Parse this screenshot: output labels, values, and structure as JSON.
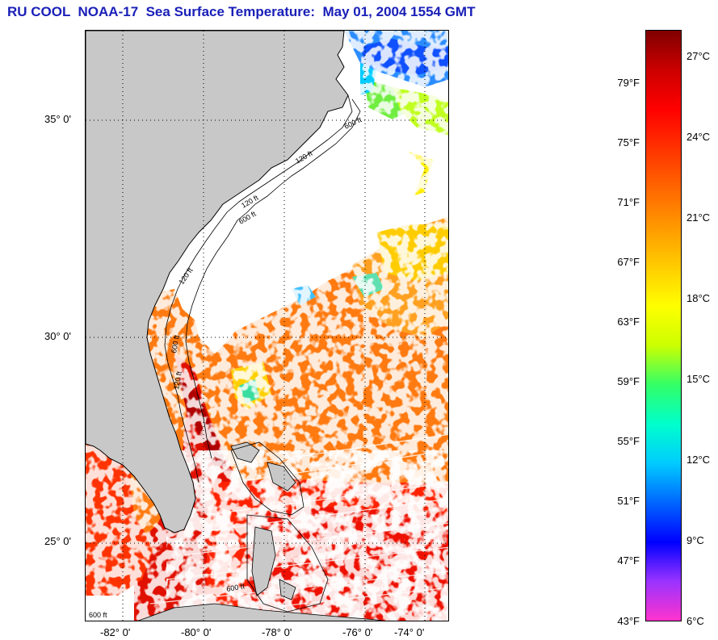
{
  "title": "RU COOL  NOAA-17  Sea Surface Temperature:  May 01, 2004 1554 GMT",
  "map": {
    "lon_ticks": [
      "-82° 0'",
      "-80° 0'",
      "-78° 0'",
      "-76° 0'",
      "-74° 0'"
    ],
    "lat_ticks": [
      "35° 0'",
      "30° 0'",
      "25° 0'"
    ],
    "isobath_labels": [
      "600 ft",
      "120 ft",
      "120 ft",
      "600 ft",
      "120 ft",
      "600 ft",
      "120 ft",
      "600 ft",
      "600 ft"
    ],
    "colors": {
      "land": "#c8c8c8",
      "cloud": "#ffffff",
      "gridline": "#000000"
    }
  },
  "colorbar": {
    "fahrenheit": [
      "79°F",
      "75°F",
      "71°F",
      "67°F",
      "63°F",
      "59°F",
      "55°F",
      "51°F",
      "47°F",
      "43°F"
    ],
    "celsius": [
      "27°C",
      "24°C",
      "21°C",
      "18°C",
      "15°C",
      "12°C",
      "9°C",
      "6°C"
    ],
    "stops": [
      "#ff33cc",
      "#9933ff",
      "#0000ff",
      "#0066ff",
      "#00ccff",
      "#00ffcc",
      "#33ff66",
      "#ccff00",
      "#ffff00",
      "#ffcc00",
      "#ff9900",
      "#ff6600",
      "#ff3300",
      "#ff0000",
      "#cc0000",
      "#800000"
    ]
  }
}
